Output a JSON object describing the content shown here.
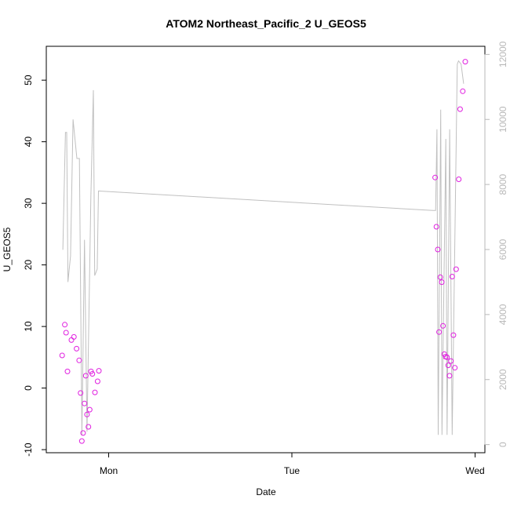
{
  "chart_data": {
    "type": "scatter",
    "title": "ATOM2 Northeast_Pacific_2 U_GEOS5",
    "xlabel": "Date",
    "ylabel": "U_GEOS5",
    "x_ticks": [
      "Mon",
      "Tue",
      "Wed"
    ],
    "ylim": [
      -10.5,
      55.5
    ],
    "y_ticks": [
      -10,
      0,
      10,
      20,
      30,
      40,
      50
    ],
    "y2_ticks": [
      0,
      2000,
      4000,
      6000,
      8000,
      10000,
      12000
    ],
    "y2lim": [
      -250,
      12250
    ],
    "grid": false,
    "colors": {
      "points": "#e020e0",
      "line": "#c0c0c0",
      "right_axis": "#b8b8b8",
      "frame": "#000000"
    },
    "points": [
      {
        "x": "Sun 17:54",
        "y": 5.3
      },
      {
        "x": "Sun 18:15",
        "y": 10.3
      },
      {
        "x": "Sun 18:25",
        "y": 9.0
      },
      {
        "x": "Sun 18:36",
        "y": 2.7
      },
      {
        "x": "Sun 19:07",
        "y": 7.8
      },
      {
        "x": "Sun 19:27",
        "y": 8.3
      },
      {
        "x": "Sun 19:48",
        "y": 6.4
      },
      {
        "x": "Sun 20:08",
        "y": 4.5
      },
      {
        "x": "Sun 20:19",
        "y": -0.8
      },
      {
        "x": "Sun 20:29",
        "y": -8.6
      },
      {
        "x": "Sun 20:39",
        "y": -7.3
      },
      {
        "x": "Sun 20:50",
        "y": -2.5
      },
      {
        "x": "Sun 21:00",
        "y": 2.0
      },
      {
        "x": "Sun 21:10",
        "y": -4.3
      },
      {
        "x": "Sun 21:21",
        "y": -6.3
      },
      {
        "x": "Sun 21:31",
        "y": -3.5
      },
      {
        "x": "Sun 21:41",
        "y": 2.7
      },
      {
        "x": "Sun 21:52",
        "y": 2.3
      },
      {
        "x": "Sun 22:12",
        "y": -0.7
      },
      {
        "x": "Sun 22:33",
        "y": 1.1
      },
      {
        "x": "Sun 22:43",
        "y": 2.8
      },
      {
        "x": "Tue 18:46",
        "y": 34.2
      },
      {
        "x": "Tue 18:56",
        "y": 26.2
      },
      {
        "x": "Tue 19:07",
        "y": 22.5
      },
      {
        "x": "Tue 19:17",
        "y": 9.1
      },
      {
        "x": "Tue 19:27",
        "y": 18.0
      },
      {
        "x": "Tue 19:38",
        "y": 17.2
      },
      {
        "x": "Tue 19:48",
        "y": 10.1
      },
      {
        "x": "Tue 19:58",
        "y": 5.5
      },
      {
        "x": "Tue 20:08",
        "y": 5.1
      },
      {
        "x": "Tue 20:19",
        "y": 5.0
      },
      {
        "x": "Tue 20:29",
        "y": 3.7
      },
      {
        "x": "Tue 20:39",
        "y": 2.0
      },
      {
        "x": "Tue 20:50",
        "y": 4.4
      },
      {
        "x": "Tue 21:00",
        "y": 18.1
      },
      {
        "x": "Tue 21:10",
        "y": 8.6
      },
      {
        "x": "Tue 21:21",
        "y": 3.3
      },
      {
        "x": "Tue 21:31",
        "y": 19.3
      },
      {
        "x": "Tue 21:52",
        "y": 33.9
      },
      {
        "x": "Tue 22:02",
        "y": 45.3
      },
      {
        "x": "Tue 22:23",
        "y": 48.2
      },
      {
        "x": "Tue 22:43",
        "y": 53.0
      }
    ],
    "secondary_series": [
      {
        "x": "Sun 18:00",
        "y2": 5990
      },
      {
        "x": "Sun 18:20",
        "y2": 9600
      },
      {
        "x": "Sun 18:30",
        "y2": 9600
      },
      {
        "x": "Sun 18:40",
        "y2": 5000
      },
      {
        "x": "Sun 19:00",
        "y2": 5800
      },
      {
        "x": "Sun 19:20",
        "y2": 10000
      },
      {
        "x": "Sun 19:50",
        "y2": 8800
      },
      {
        "x": "Sun 20:10",
        "y2": 8800
      },
      {
        "x": "Sun 20:30",
        "y2": 300
      },
      {
        "x": "Sun 20:50",
        "y2": 6300
      },
      {
        "x": "Sun 21:10",
        "y2": 400
      },
      {
        "x": "Sun 21:40",
        "y2": 7600
      },
      {
        "x": "Sun 22:00",
        "y2": 10900
      },
      {
        "x": "Sun 22:10",
        "y2": 5200
      },
      {
        "x": "Sun 22:30",
        "y2": 5400
      },
      {
        "x": "Sun 22:40",
        "y2": 7800
      },
      {
        "x": "Tue 18:30",
        "y2": 7200
      },
      {
        "x": "Tue 18:50",
        "y2": 7200
      },
      {
        "x": "Tue 19:00",
        "y2": 9700
      },
      {
        "x": "Tue 19:10",
        "y2": 300
      },
      {
        "x": "Tue 19:30",
        "y2": 10300
      },
      {
        "x": "Tue 19:40",
        "y2": 300
      },
      {
        "x": "Tue 20:10",
        "y2": 9400
      },
      {
        "x": "Tue 20:20",
        "y2": 300
      },
      {
        "x": "Tue 20:40",
        "y2": 9700
      },
      {
        "x": "Tue 21:00",
        "y2": 300
      },
      {
        "x": "Tue 21:40",
        "y2": 11700
      },
      {
        "x": "Tue 21:50",
        "y2": 11800
      },
      {
        "x": "Tue 22:10",
        "y2": 11700
      },
      {
        "x": "Tue 22:30",
        "y2": 11100
      }
    ]
  }
}
